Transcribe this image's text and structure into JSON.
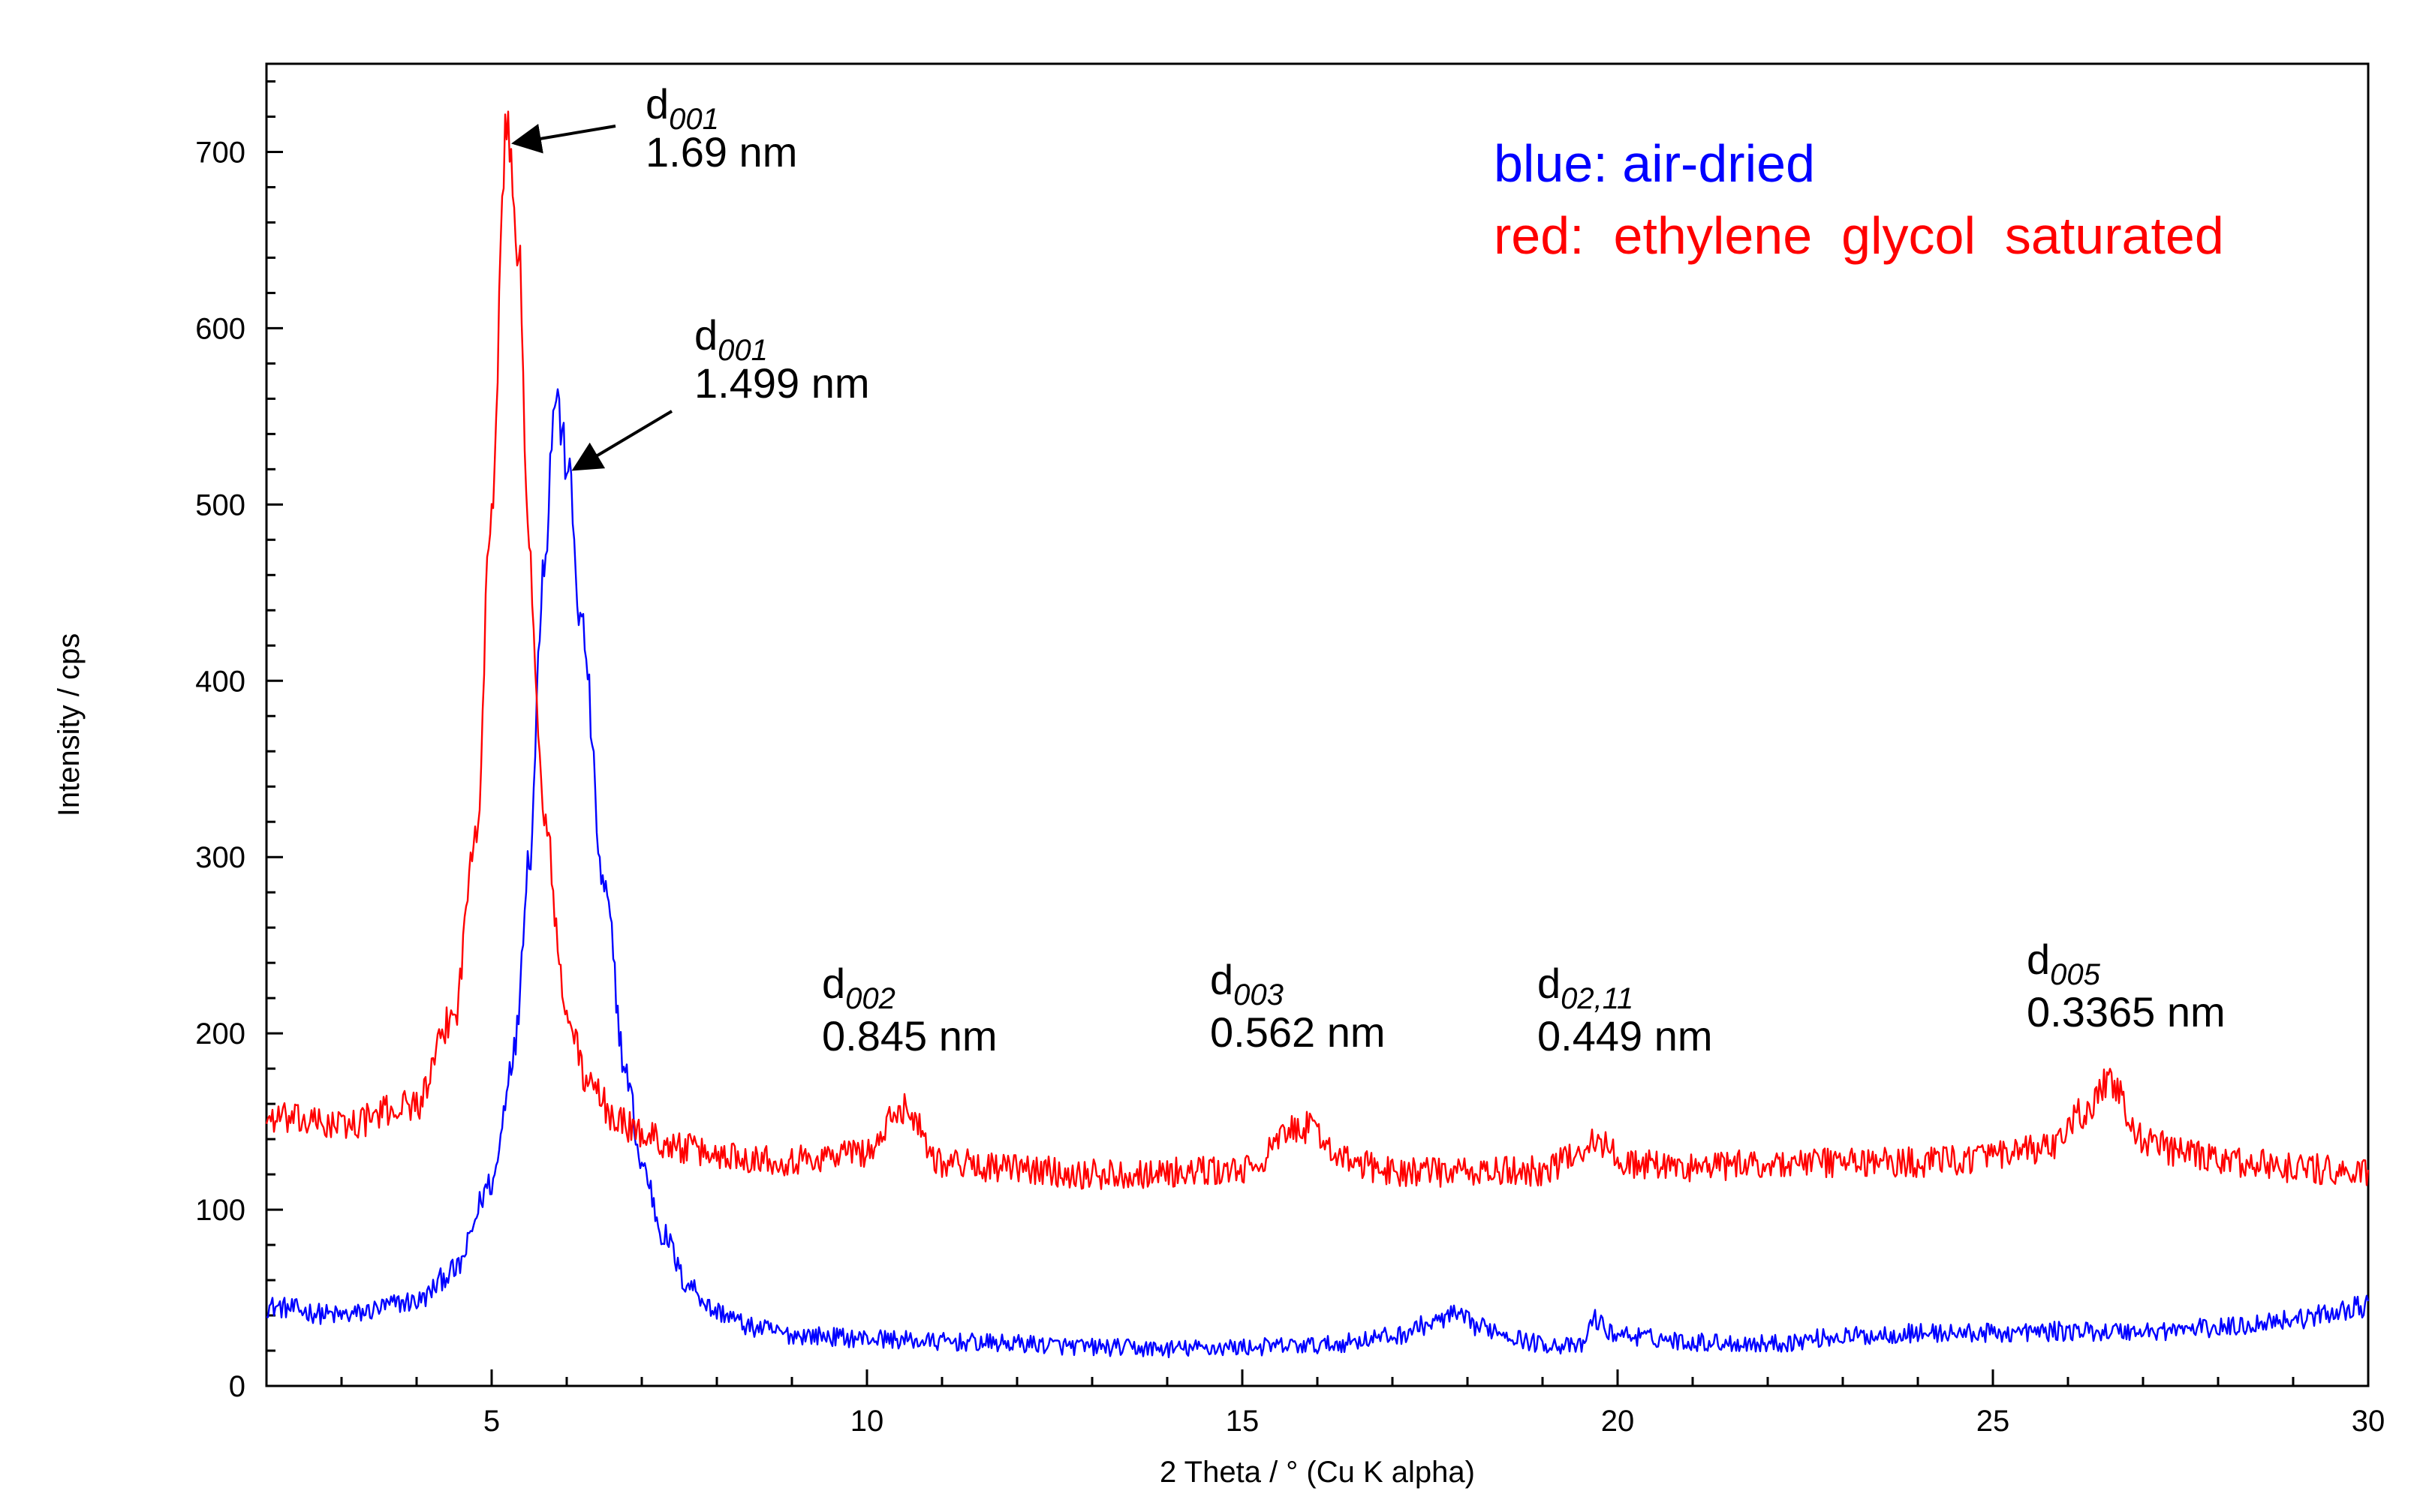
{
  "chart_data": {
    "type": "line",
    "title": "",
    "xlabel": "2 Theta / °   (Cu K alpha)",
    "ylabel": "Intensity / cps",
    "xlim": [
      2,
      30
    ],
    "ylim": [
      0,
      750
    ],
    "x_ticks": [
      5,
      10,
      15,
      20,
      25,
      30
    ],
    "y_ticks": [
      0,
      100,
      200,
      300,
      400,
      500,
      600,
      700
    ],
    "x_tick_labels": [
      "5",
      "10",
      "15",
      "20",
      "25",
      "30"
    ],
    "y_tick_labels": [
      "0",
      "100",
      "200",
      "300",
      "400",
      "500",
      "600",
      "700"
    ],
    "grid": false,
    "legend": {
      "position": "top-right",
      "entries": [
        {
          "text": "blue: air-dried",
          "color": "#0000ff"
        },
        {
          "text": "red:  ethylene  glycol  saturated",
          "color": "#ff0000"
        }
      ]
    },
    "series": [
      {
        "name": "air-dried",
        "color": "#0000ff",
        "x": [
          2,
          3,
          4,
          4.5,
          5,
          5.3,
          5.5,
          5.7,
          5.85,
          6.0,
          6.2,
          6.5,
          6.8,
          7.0,
          7.3,
          7.6,
          8.0,
          8.5,
          9,
          10,
          11,
          12,
          13,
          14,
          15,
          16,
          17,
          17.5,
          17.8,
          18.2,
          19,
          19.5,
          19.7,
          19.9,
          20.5,
          21,
          22,
          23,
          24,
          25,
          26,
          27,
          28,
          29,
          30
        ],
        "y": [
          45,
          40,
          48,
          65,
          115,
          190,
          300,
          470,
          562,
          525,
          430,
          280,
          175,
          125,
          85,
          58,
          42,
          33,
          29,
          27,
          25,
          24,
          22,
          21,
          22,
          23,
          28,
          35,
          40,
          33,
          24,
          22,
          38,
          30,
          27,
          25,
          24,
          28,
          30,
          30,
          31,
          31,
          33,
          38,
          45
        ]
      },
      {
        "name": "ethylene glycol saturated",
        "color": "#ff0000",
        "x": [
          2,
          3,
          4,
          4.5,
          4.8,
          5.0,
          5.2,
          5.35,
          5.5,
          5.7,
          6.0,
          6.3,
          6.7,
          7.0,
          7.5,
          8,
          9,
          10,
          10.5,
          11,
          12,
          13,
          14,
          15,
          15.8,
          16.5,
          17,
          18,
          19,
          19.7,
          20.2,
          21,
          22,
          23,
          24,
          25,
          25.8,
          26.2,
          26.55,
          27,
          27.5,
          28,
          29,
          30
        ],
        "y": [
          152,
          148,
          160,
          210,
          320,
          500,
          715,
          650,
          470,
          320,
          210,
          170,
          150,
          143,
          135,
          131,
          128,
          133,
          158,
          127,
          123,
          120,
          121,
          122,
          147,
          126,
          122,
          121,
          122,
          138,
          126,
          124,
          126,
          127,
          127,
          130,
          135,
          155,
          172,
          140,
          132,
          128,
          124,
          120
        ]
      }
    ],
    "annotations": [
      {
        "main": "d",
        "sub": "001",
        "value": "1.69 nm",
        "arrow_to": [
          5.3,
          705
        ]
      },
      {
        "main": "d",
        "sub": "001",
        "value": "1.499 nm",
        "arrow_to": [
          6.1,
          520
        ]
      },
      {
        "main": "d",
        "sub": "002",
        "value": "0.845 nm"
      },
      {
        "main": "d",
        "sub": "003",
        "value": "0.562 nm"
      },
      {
        "main": "d",
        "sub": "02,11",
        "value": "0.449 nm"
      },
      {
        "main": "d",
        "sub": "005",
        "value": "0.3365 nm"
      }
    ]
  }
}
